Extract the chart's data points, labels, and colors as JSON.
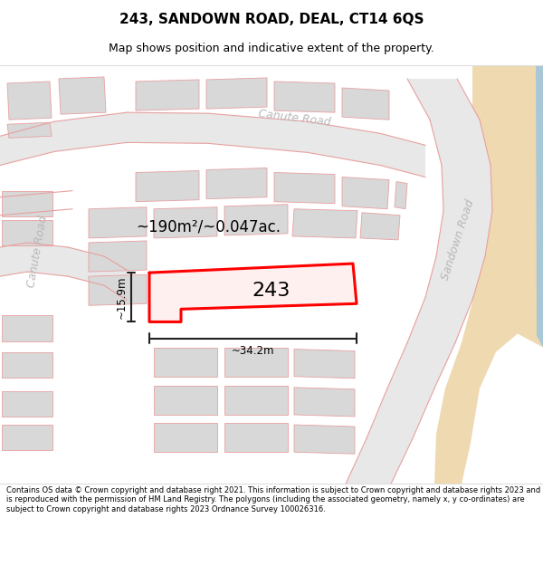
{
  "title": "243, SANDOWN ROAD, DEAL, CT14 6QS",
  "subtitle": "Map shows position and indicative extent of the property.",
  "footer": "Contains OS data © Crown copyright and database right 2021. This information is subject to Crown copyright and database rights 2023 and is reproduced with the permission of HM Land Registry. The polygons (including the associated geometry, namely x, y co-ordinates) are subject to Crown copyright and database rights 2023 Ordnance Survey 100026316.",
  "area_label": "~190m²/~0.047ac.",
  "width_label": "~34.2m",
  "height_label": "~15.9m",
  "label_243": "243",
  "map_bg": "#ffffff",
  "building_fill": "#d8d8d8",
  "building_edge": "#e8a0a0",
  "road_fill": "#e8e8e8",
  "highlight_color": "#ff0000",
  "road_label_color": "#b8b8b8",
  "dim_color": "#222222",
  "sand_color": "#eed9b0",
  "water_color": "#a8c8d8",
  "title_fontsize": 11,
  "subtitle_fontsize": 9,
  "footer_fontsize": 6.0
}
